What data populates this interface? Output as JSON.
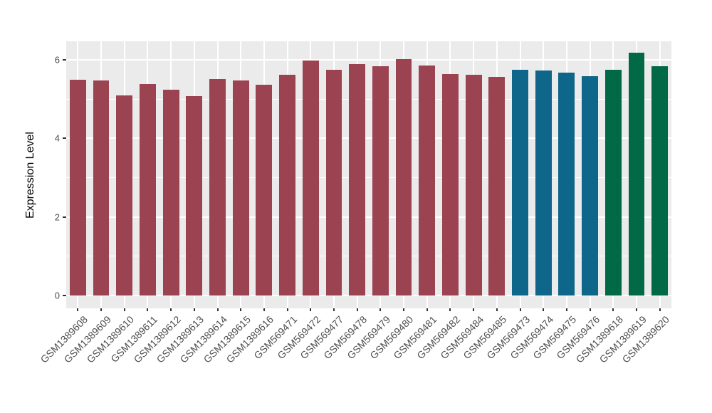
{
  "chart": {
    "background_color": "#FFFFFF",
    "panel_background_color": "#EBEBEB",
    "gridline_color": "#FFFFFF",
    "tick_mark_color": "#333333",
    "axis_text_color": "#4D4D4D",
    "axis_title_color": "#000000"
  },
  "chart_data": {
    "type": "bar",
    "title": "",
    "xlabel": "",
    "ylabel": "Expression Level",
    "ylim": [
      -0.33,
      6.47
    ],
    "yticks": [
      0,
      2,
      4,
      6
    ],
    "ytick_labels": [
      "0",
      "2",
      "4",
      "6"
    ],
    "yticks_minor": [
      1,
      3,
      5
    ],
    "grid": "on",
    "legend_position": "none",
    "x_label_rotation_deg": 45,
    "categories": [
      "GSM1389608",
      "GSM1389609",
      "GSM1389610",
      "GSM1389611",
      "GSM1389612",
      "GSM1389613",
      "GSM1389614",
      "GSM1389615",
      "GSM1389616",
      "GSM569471",
      "GSM569472",
      "GSM569477",
      "GSM569478",
      "GSM569479",
      "GSM569480",
      "GSM569481",
      "GSM569482",
      "GSM569484",
      "GSM569485",
      "GSM569473",
      "GSM569474",
      "GSM569475",
      "GSM569476",
      "GSM1389618",
      "GSM1389619",
      "GSM1389620"
    ],
    "values": [
      5.5,
      5.47,
      5.09,
      5.38,
      5.24,
      5.08,
      5.51,
      5.48,
      5.36,
      5.62,
      5.98,
      5.75,
      5.9,
      5.84,
      6.02,
      5.86,
      5.64,
      5.62,
      5.57,
      5.74,
      5.73,
      5.67,
      5.58,
      5.74,
      6.18,
      5.84
    ],
    "bar_groups": [
      "group1",
      "group1",
      "group1",
      "group1",
      "group1",
      "group1",
      "group1",
      "group1",
      "group1",
      "group1",
      "group1",
      "group1",
      "group1",
      "group1",
      "group1",
      "group1",
      "group1",
      "group1",
      "group1",
      "group2",
      "group2",
      "group2",
      "group2",
      "group3",
      "group3",
      "group3"
    ],
    "group_colors": {
      "group1": "#9B4351",
      "group2": "#0E678A",
      "group3": "#016946"
    }
  }
}
